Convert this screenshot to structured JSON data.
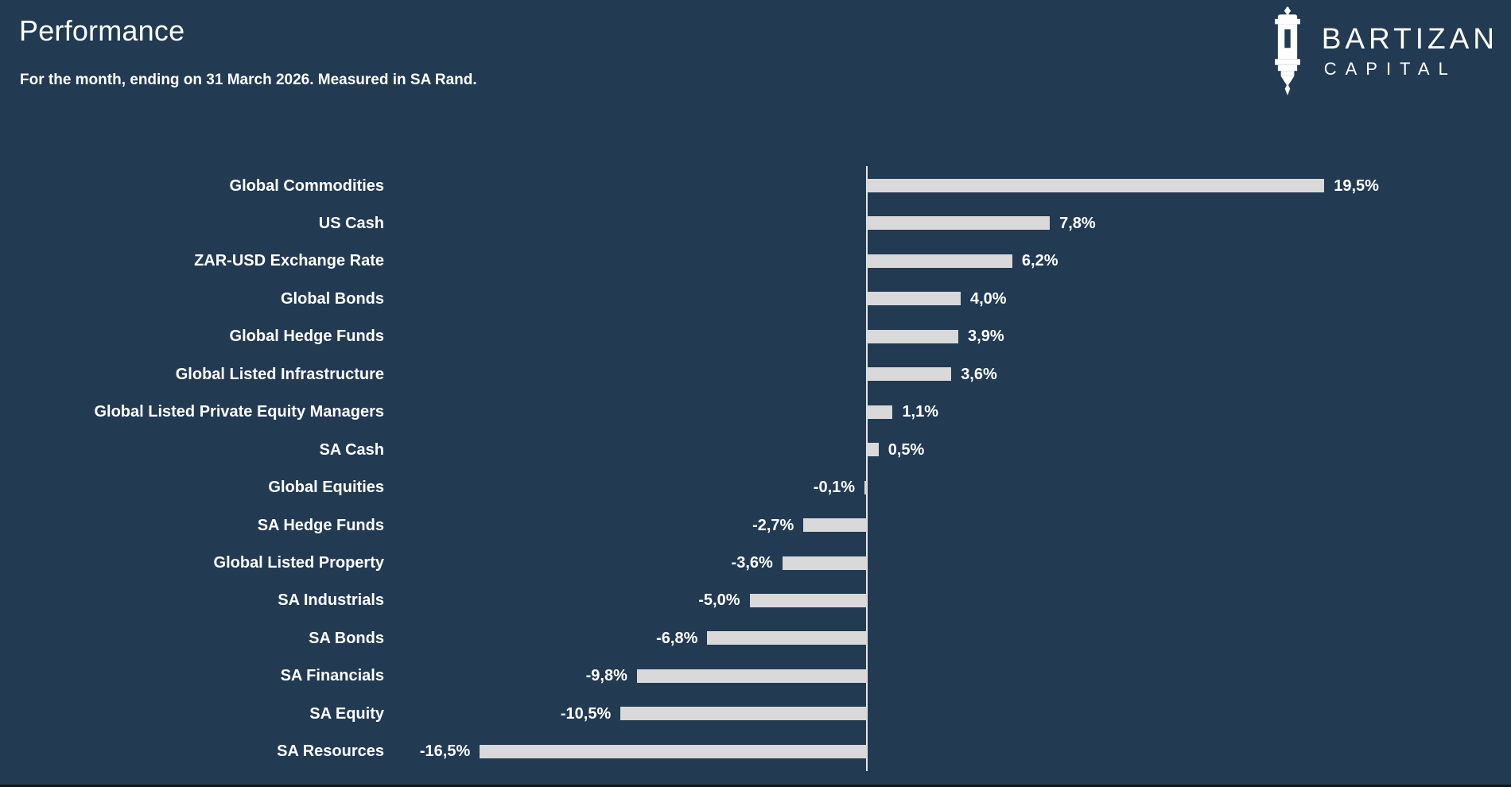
{
  "page": {
    "background_color": "#223A52",
    "bottom_edge_color": "#101820"
  },
  "header": {
    "title": "Performance",
    "subtitle": "For the month, ending on 31 March 2026. Measured in SA Rand."
  },
  "logo": {
    "brand": "BARTIZAN",
    "brand_sub": "CAPITAL",
    "icon": "bartizan-turret-icon",
    "color": "#FFFFFF"
  },
  "chart_data": {
    "type": "bar",
    "orientation": "horizontal",
    "title": "",
    "xlabel": "",
    "ylabel": "",
    "grid": false,
    "legend": false,
    "xlim": [
      -16.5,
      19.5
    ],
    "categories": [
      "Global Commodities",
      "US Cash",
      "ZAR-USD Exchange Rate",
      "Global Bonds",
      "Global Hedge Funds",
      "Global Listed Infrastructure",
      "Global Listed Private Equity Managers",
      "SA Cash",
      "Global Equities",
      "SA Hedge Funds",
      "Global Listed Property",
      "SA Industrials",
      "SA Bonds",
      "SA Financials",
      "SA Equity",
      "SA Resources"
    ],
    "values": [
      19.5,
      7.8,
      6.2,
      4.0,
      3.9,
      3.6,
      1.1,
      0.5,
      -0.1,
      -2.7,
      -3.6,
      -5.0,
      -6.8,
      -9.8,
      -10.5,
      -16.5
    ],
    "value_labels": [
      "19,5%",
      "7,8%",
      "6,2%",
      "4,0%",
      "3,9%",
      "3,6%",
      "1,1%",
      "0,5%",
      "-0,1%",
      "-2,7%",
      "-3,6%",
      "-5,0%",
      "-6,8%",
      "-9,8%",
      "-10,5%",
      "-16,5%"
    ],
    "bar_color": "#D9D9D9",
    "label_color": "#FFFFFF",
    "axis_color": "#E7E6E6"
  }
}
